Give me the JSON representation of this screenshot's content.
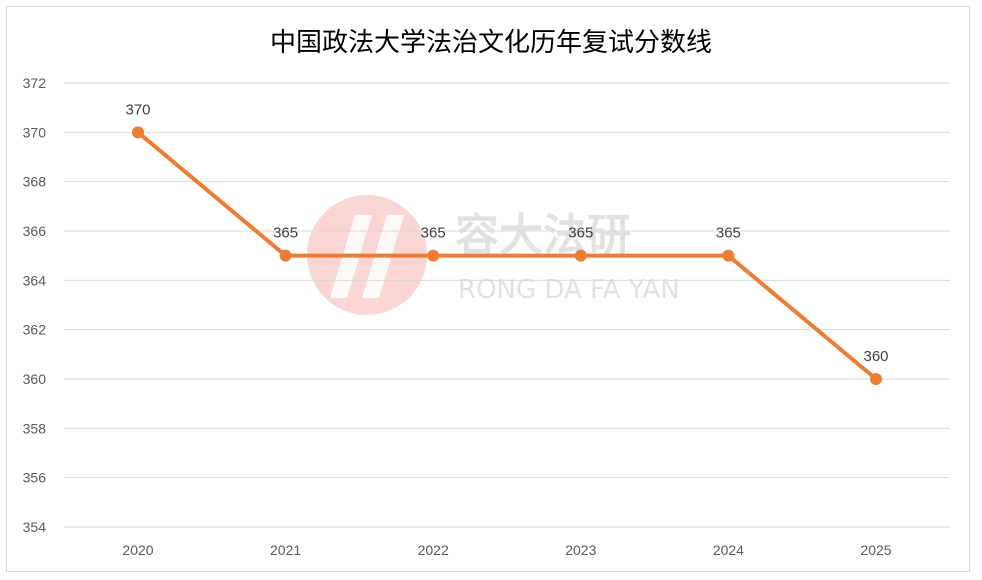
{
  "chart_data": {
    "type": "line",
    "title": "中国政法大学法治文化历年复试分数线",
    "xlabel": "",
    "ylabel": "",
    "categories": [
      "2020",
      "2021",
      "2022",
      "2023",
      "2024",
      "2025"
    ],
    "series": [
      {
        "values": [
          370,
          365,
          365,
          365,
          365,
          360
        ],
        "color": "#ED7D31"
      }
    ],
    "ylim": [
      354,
      372
    ],
    "yticks": [
      354,
      356,
      358,
      360,
      362,
      364,
      366,
      368,
      370,
      372
    ],
    "grid": true,
    "data_labels": true,
    "legend": "none"
  },
  "watermark": {
    "name_cn": "容大法研",
    "name_en": "RONG DA FA YAN",
    "logo_color": "#f4b5b0"
  }
}
